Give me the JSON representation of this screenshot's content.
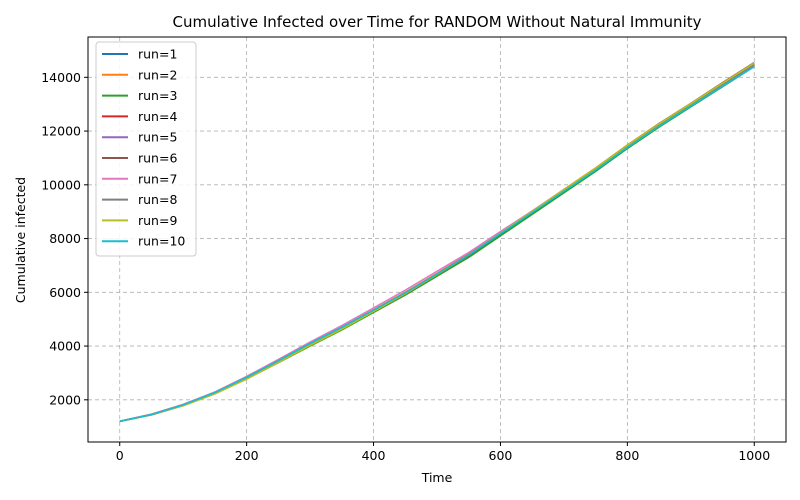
{
  "chart_data": {
    "type": "line",
    "title": "Cumulative Infected over Time for RANDOM Without Natural Immunity",
    "xlabel": "Time",
    "ylabel": "Cumulative infected",
    "xlim": [
      -50,
      1050
    ],
    "ylim": [
      430,
      15500
    ],
    "xticks": [
      0,
      200,
      400,
      600,
      800,
      1000
    ],
    "yticks": [
      2000,
      4000,
      6000,
      8000,
      10000,
      12000,
      14000
    ],
    "grid": true,
    "legend_position": "top-left",
    "x": [
      0,
      50,
      100,
      150,
      200,
      250,
      300,
      350,
      400,
      450,
      500,
      550,
      600,
      650,
      700,
      750,
      800,
      850,
      900,
      950,
      1000
    ],
    "series": [
      {
        "name": "run=1",
        "color": "#1f77b4",
        "values": [
          1200,
          1450,
          1800,
          2250,
          2800,
          3400,
          4050,
          4650,
          5300,
          5950,
          6650,
          7350,
          8150,
          8950,
          9750,
          10550,
          11400,
          12200,
          12950,
          13700,
          14450
        ]
      },
      {
        "name": "run=2",
        "color": "#ff7f0e",
        "values": [
          1200,
          1460,
          1820,
          2270,
          2830,
          3450,
          4100,
          4700,
          5350,
          6000,
          6700,
          7420,
          8230,
          9020,
          9830,
          10630,
          11480,
          12280,
          13020,
          13780,
          14520
        ]
      },
      {
        "name": "run=3",
        "color": "#2ca02c",
        "values": [
          1200,
          1440,
          1790,
          2230,
          2780,
          3380,
          4000,
          4600,
          5250,
          5900,
          6600,
          7300,
          8100,
          8900,
          9700,
          10500,
          11350,
          12150,
          12900,
          13650,
          14400
        ]
      },
      {
        "name": "run=4",
        "color": "#d62728",
        "values": [
          1200,
          1455,
          1810,
          2260,
          2820,
          3430,
          4080,
          4680,
          5330,
          5980,
          6680,
          7400,
          8200,
          9000,
          9800,
          10600,
          11450,
          12250,
          13000,
          13750,
          14500
        ]
      },
      {
        "name": "run=5",
        "color": "#9467bd",
        "values": [
          1200,
          1450,
          1800,
          2250,
          2810,
          3420,
          4070,
          4670,
          5320,
          5970,
          6670,
          7390,
          8190,
          8990,
          9790,
          10590,
          11440,
          12240,
          12990,
          13740,
          14480
        ]
      },
      {
        "name": "run=6",
        "color": "#8c564b",
        "values": [
          1200,
          1445,
          1795,
          2240,
          2790,
          3400,
          4040,
          4640,
          5290,
          5940,
          6650,
          7370,
          8180,
          8990,
          9800,
          10610,
          11470,
          12280,
          13030,
          13800,
          14550
        ]
      },
      {
        "name": "run=7",
        "color": "#e377c2",
        "values": [
          1200,
          1465,
          1830,
          2290,
          2870,
          3500,
          4150,
          4760,
          5420,
          6080,
          6780,
          7480,
          8260,
          9030,
          9820,
          10600,
          11440,
          12230,
          12980,
          13740,
          14480
        ]
      },
      {
        "name": "run=8",
        "color": "#7f7f7f",
        "values": [
          1200,
          1450,
          1805,
          2255,
          2815,
          3425,
          4075,
          4675,
          5325,
          5975,
          6675,
          7395,
          8195,
          8995,
          9795,
          10595,
          11445,
          12245,
          12995,
          13745,
          14490
        ]
      },
      {
        "name": "run=9",
        "color": "#bcbd22",
        "values": [
          1200,
          1440,
          1780,
          2220,
          2770,
          3390,
          4030,
          4630,
          5290,
          5950,
          6660,
          7390,
          8200,
          9010,
          9820,
          10620,
          11470,
          12270,
          13020,
          13780,
          14530
        ]
      },
      {
        "name": "run=10",
        "color": "#17becf",
        "values": [
          1200,
          1450,
          1810,
          2270,
          2840,
          3460,
          4100,
          4700,
          5340,
          5980,
          6680,
          7390,
          8180,
          8970,
          9760,
          10550,
          11390,
          12180,
          12930,
          13670,
          14400
        ]
      }
    ]
  }
}
